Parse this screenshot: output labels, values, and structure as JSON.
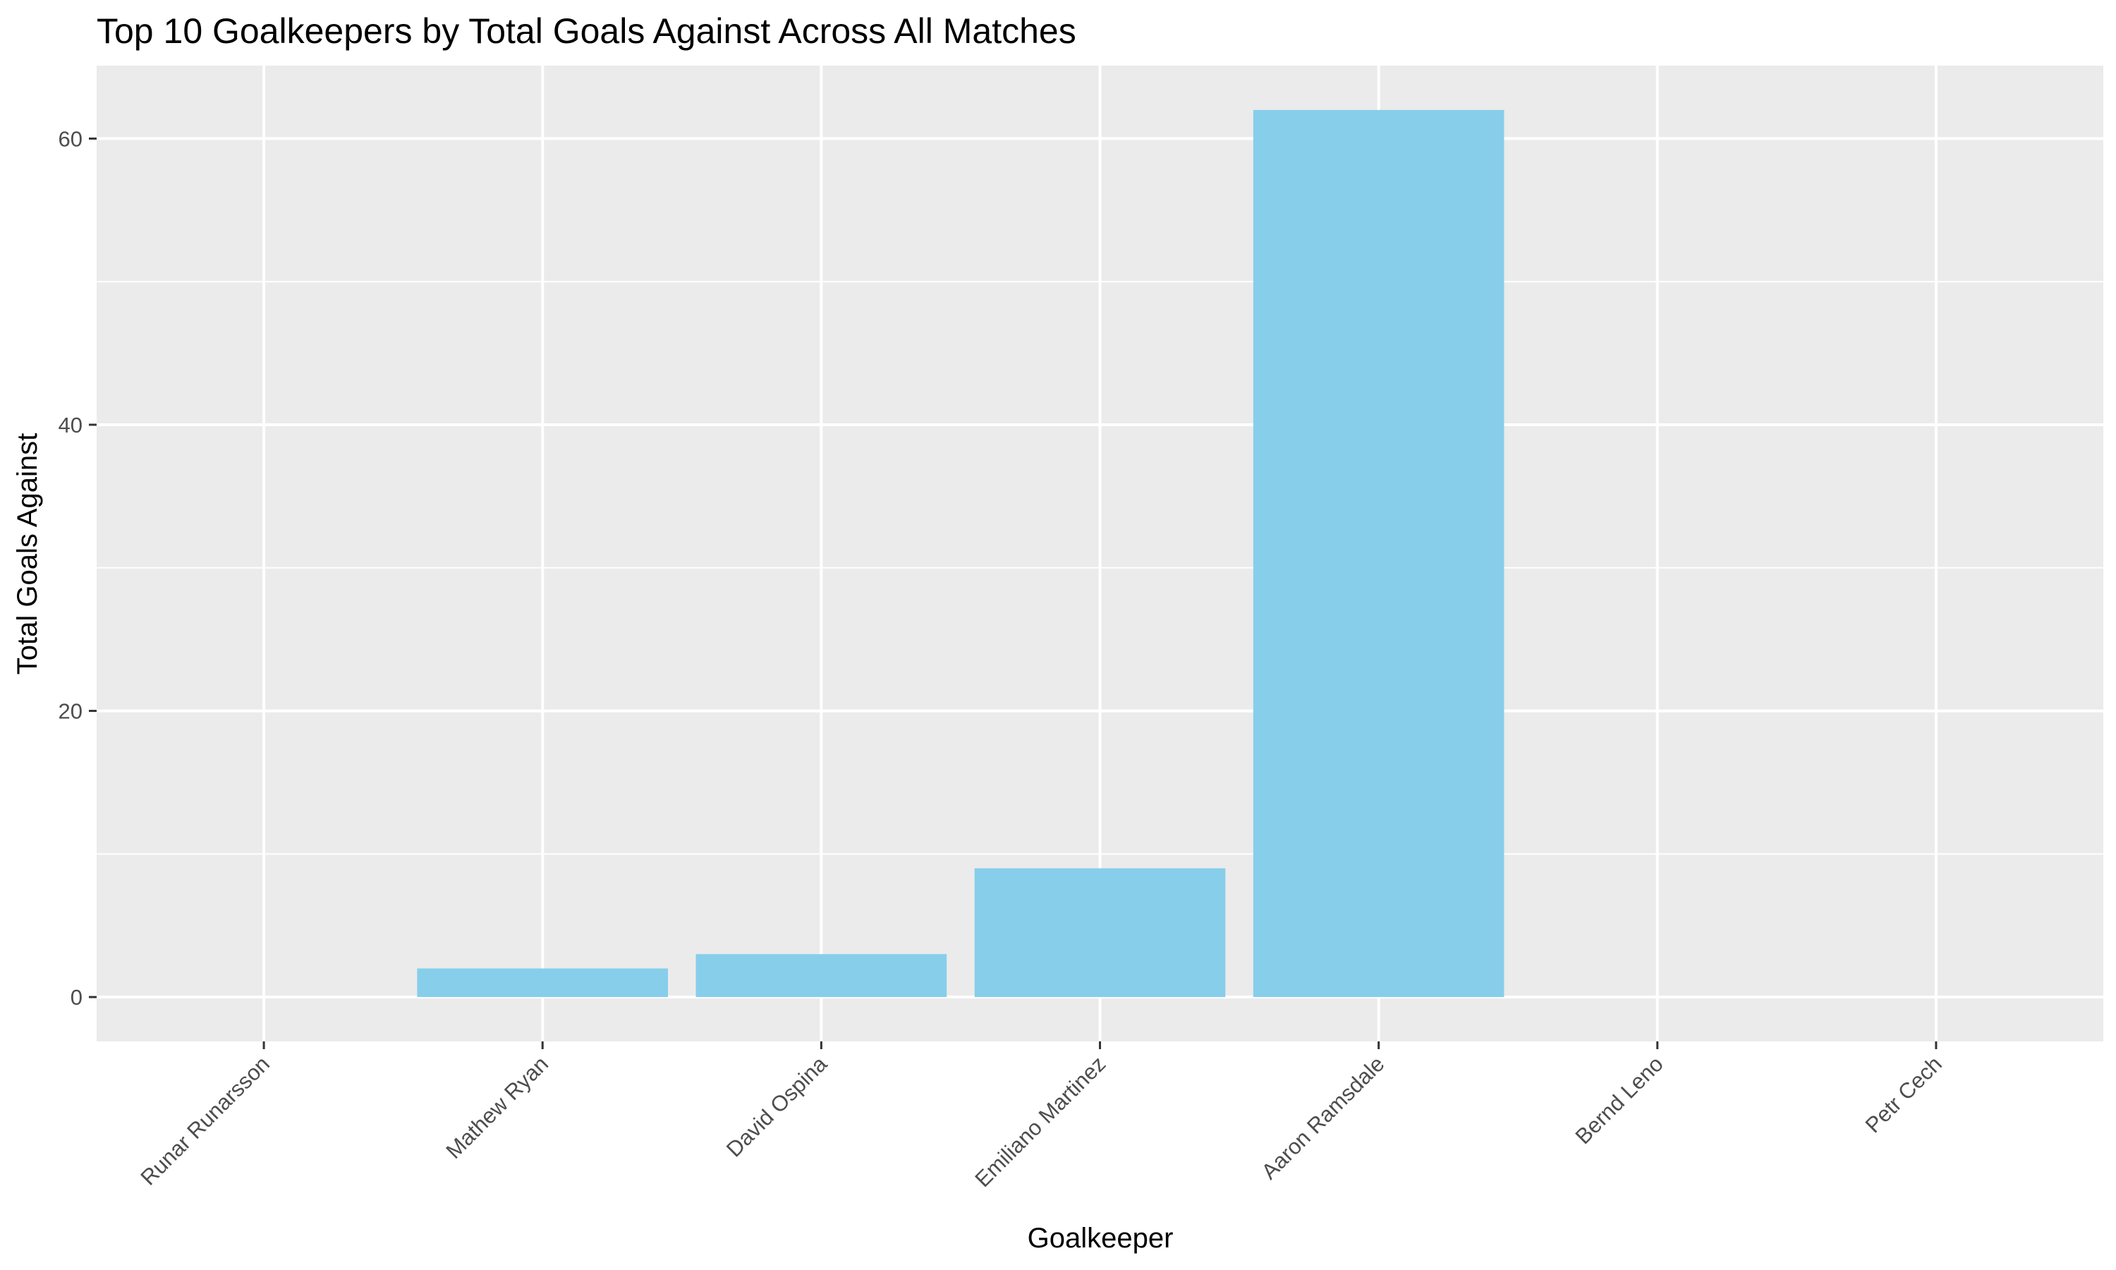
{
  "chart_data": {
    "type": "bar",
    "title": "Top 10 Goalkeepers by Total Goals Against Across All Matches",
    "xlabel": "Goalkeeper",
    "ylabel": "Total Goals Against",
    "categories": [
      "Runar Runarsson",
      "Mathew Ryan",
      "David Ospina",
      "Emiliano Martinez",
      "Aaron Ramsdale",
      "Bernd Leno",
      "Petr Cech"
    ],
    "values": [
      0,
      2,
      3,
      9,
      62,
      0,
      0
    ],
    "ylim": [
      -3.1,
      65.1
    ],
    "yticks": [
      0,
      20,
      40,
      60
    ],
    "grid": true,
    "legend": "none",
    "colors": {
      "bar": "#87CEEB",
      "panel": "#EBEBEB",
      "grid": "#FFFFFF",
      "tick_text": "#4D4D4D",
      "tick_mark": "#333333"
    }
  }
}
